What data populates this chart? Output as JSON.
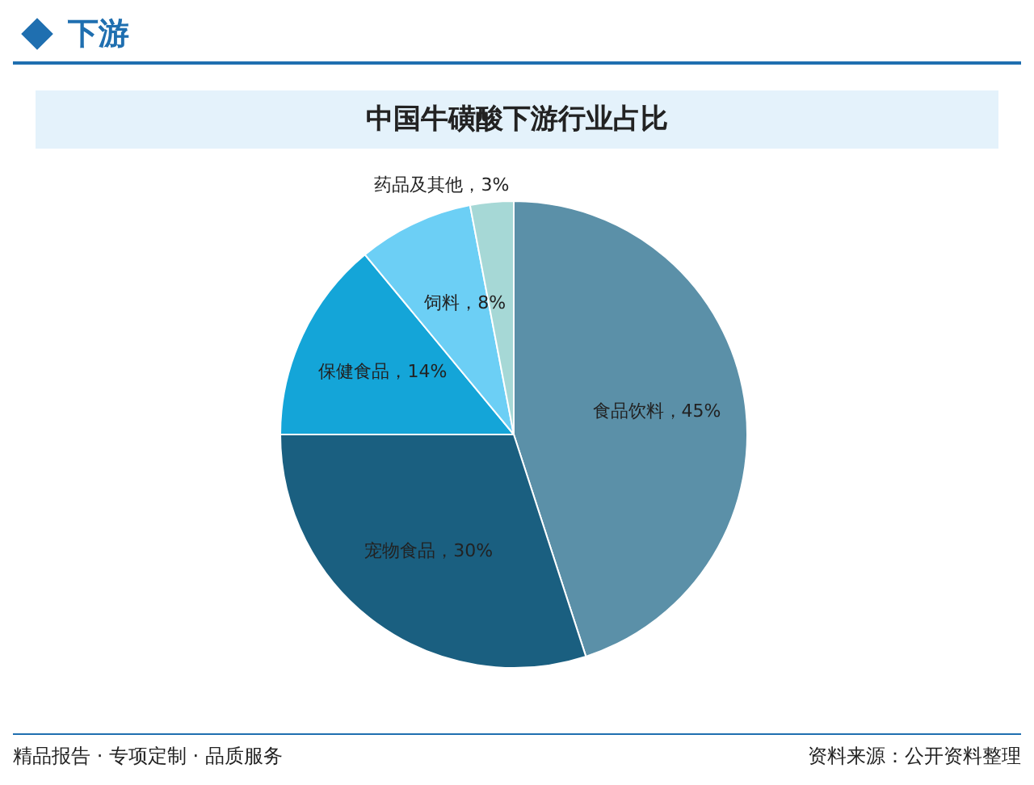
{
  "chart_data": {
    "type": "pie",
    "title": "中国牛磺酸下游行业占比",
    "categories": [
      "食品饮料",
      "宠物食品",
      "保健食品",
      "饲料",
      "药品及其他"
    ],
    "values": [
      45,
      30,
      14,
      8,
      3
    ],
    "colors": [
      "#5b90a8",
      "#1a5f80",
      "#14a5d8",
      "#6ccff5",
      "#a6d8d6"
    ],
    "value_labels": [
      "，45%",
      "，30%",
      "，14%",
      "，8%",
      "，3%"
    ],
    "annotations": [
      "下游",
      "精品报告 · 专项定制 · 品质服务",
      "资料来源：公开资料整理"
    ]
  }
}
